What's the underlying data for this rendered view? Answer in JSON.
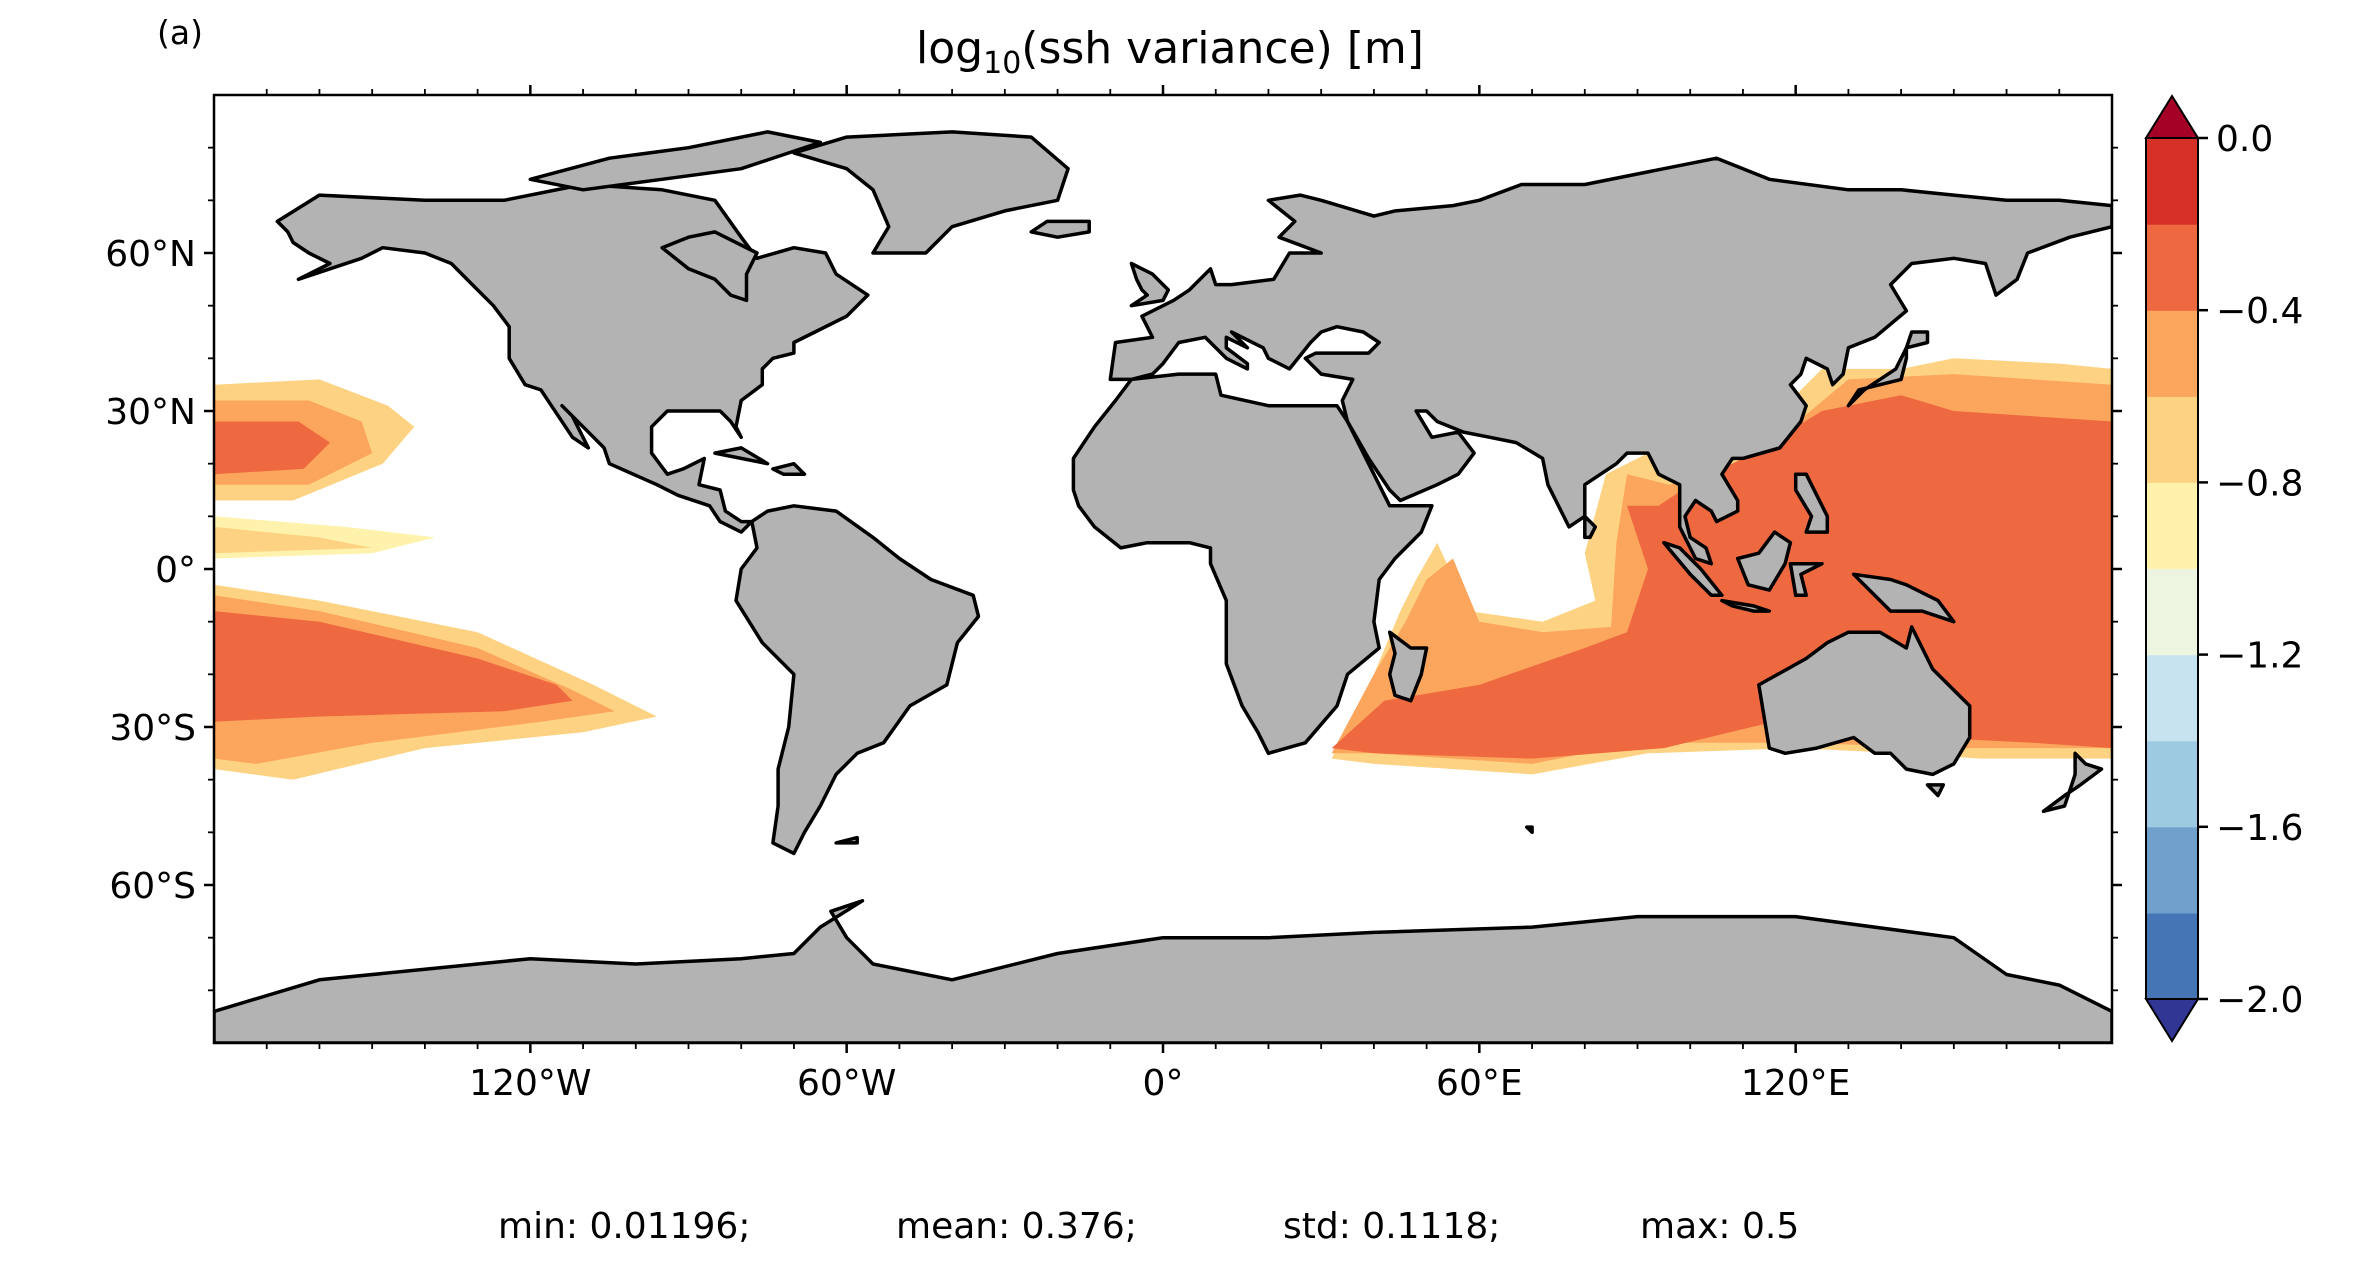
{
  "chart_data": {
    "type": "heatmap",
    "panel_label": "(a)",
    "title_main": "log",
    "title_sub": "10",
    "title_rest": "(ssh variance) [m]",
    "projection": "PlateCarree",
    "xlim": [
      -180,
      180
    ],
    "ylim": [
      -90,
      90
    ],
    "x_ticks": [
      -120,
      -60,
      0,
      60,
      120
    ],
    "x_tick_labels": [
      "120°W",
      "60°W",
      "0°",
      "60°E",
      "120°E"
    ],
    "y_ticks": [
      60,
      30,
      0,
      -30,
      -60
    ],
    "y_tick_labels": [
      "60°N",
      "30°N",
      "0°",
      "30°S",
      "60°S"
    ],
    "colorbar": {
      "levels": [
        -2.0,
        -1.8,
        -1.6,
        -1.4,
        -1.2,
        -1.0,
        -0.8,
        -0.6,
        -0.4,
        -0.2,
        0.0
      ],
      "colors": [
        "#4575b4",
        "#6fa0cc",
        "#9ecae1",
        "#c7e3ef",
        "#edf5e0",
        "#fff2ac",
        "#fdd383",
        "#fca55c",
        "#ee6840",
        "#d73027"
      ],
      "under_color": "#313695",
      "over_color": "#a50026",
      "tick_values": [
        0.0,
        -0.4,
        -0.8,
        -1.2,
        -1.6,
        -2.0
      ],
      "tick_labels": [
        "0.0",
        "−0.4",
        "−0.8",
        "−1.2",
        "−1.6",
        "−2.0"
      ],
      "extend": "both"
    },
    "land_color": "#b3b3b3",
    "field_regions": [
      {
        "region": "North Pacific subtropical band",
        "bands": [
          {
            "level": -0.8,
            "poly": [
              [
                -180,
                35
              ],
              [
                -160,
                36
              ],
              [
                -147,
                31
              ],
              [
                -142,
                27
              ],
              [
                -148,
                20
              ],
              [
                -165,
                13
              ],
              [
                -180,
                13
              ]
            ]
          },
          {
            "level": -0.6,
            "poly": [
              [
                -180,
                32
              ],
              [
                -162,
                32
              ],
              [
                -152,
                28
              ],
              [
                -150,
                22
              ],
              [
                -162,
                16
              ],
              [
                -180,
                16
              ]
            ]
          },
          {
            "level": -0.4,
            "poly": [
              [
                -180,
                28
              ],
              [
                -164,
                28
              ],
              [
                -158,
                24
              ],
              [
                -163,
                19
              ],
              [
                -180,
                18
              ]
            ]
          }
        ]
      },
      {
        "region": "Equatorial Pacific tongue",
        "bands": [
          {
            "level": -1.0,
            "poly": [
              [
                -180,
                10
              ],
              [
                -155,
                8
              ],
              [
                -138,
                6
              ],
              [
                -150,
                3
              ],
              [
                -180,
                2
              ]
            ]
          },
          {
            "level": -0.8,
            "poly": [
              [
                -180,
                8
              ],
              [
                -160,
                6
              ],
              [
                -150,
                4
              ],
              [
                -180,
                3
              ]
            ]
          }
        ]
      },
      {
        "region": "South Pacific subtropical band",
        "bands": [
          {
            "level": -0.8,
            "poly": [
              [
                -180,
                -3
              ],
              [
                -160,
                -6
              ],
              [
                -130,
                -12
              ],
              [
                -108,
                -22
              ],
              [
                -96,
                -28
              ],
              [
                -110,
                -31
              ],
              [
                -140,
                -34
              ],
              [
                -165,
                -40
              ],
              [
                -180,
                -38
              ]
            ]
          },
          {
            "level": -0.6,
            "poly": [
              [
                -180,
                -5
              ],
              [
                -160,
                -8
              ],
              [
                -130,
                -15
              ],
              [
                -112,
                -23
              ],
              [
                -104,
                -27
              ],
              [
                -118,
                -29
              ],
              [
                -150,
                -33
              ],
              [
                -172,
                -37
              ],
              [
                -180,
                -36
              ]
            ]
          },
          {
            "level": -0.4,
            "poly": [
              [
                -180,
                -8
              ],
              [
                -160,
                -10
              ],
              [
                -130,
                -17
              ],
              [
                -115,
                -22
              ],
              [
                -112,
                -25
              ],
              [
                -125,
                -27
              ],
              [
                -160,
                -28
              ],
              [
                -180,
                -29
              ]
            ]
          }
        ]
      },
      {
        "region": "Indian Ocean and western Pacific",
        "bands": [
          {
            "level": -0.8,
            "poly": [
              [
                32,
                -36
              ],
              [
                40,
                -20
              ],
              [
                45,
                -8
              ],
              [
                48,
                -2
              ],
              [
                52,
                5
              ],
              [
                58,
                -8
              ],
              [
                72,
                -10
              ],
              [
                82,
                -6
              ],
              [
                80,
                3
              ],
              [
                84,
                18
              ],
              [
                92,
                22
              ],
              [
                96,
                20
              ],
              [
                105,
                22
              ],
              [
                115,
                28
              ],
              [
                125,
                38
              ],
              [
                140,
                38
              ],
              [
                150,
                40
              ],
              [
                170,
                39
              ],
              [
                180,
                38
              ],
              [
                180,
                -36
              ],
              [
                155,
                -36
              ],
              [
                140,
                -35
              ],
              [
                120,
                -34
              ],
              [
                92,
                -35
              ],
              [
                70,
                -39
              ],
              [
                40,
                -37
              ]
            ]
          },
          {
            "level": -0.6,
            "poly": [
              [
                32,
                -35
              ],
              [
                40,
                -20
              ],
              [
                46,
                -10
              ],
              [
                50,
                -2
              ],
              [
                55,
                2
              ],
              [
                60,
                -10
              ],
              [
                72,
                -12
              ],
              [
                85,
                -11
              ],
              [
                86,
                5
              ],
              [
                88,
                18
              ],
              [
                96,
                16
              ],
              [
                106,
                18
              ],
              [
                118,
                26
              ],
              [
                130,
                36
              ],
              [
                150,
                37
              ],
              [
                180,
                35
              ],
              [
                180,
                -34
              ],
              [
                150,
                -34
              ],
              [
                120,
                -33
              ],
              [
                90,
                -33
              ],
              [
                70,
                -37
              ],
              [
                40,
                -35
              ]
            ]
          },
          {
            "level": -0.4,
            "poly": [
              [
                32,
                -34
              ],
              [
                42,
                -25
              ],
              [
                60,
                -22
              ],
              [
                80,
                -15
              ],
              [
                88,
                -12
              ],
              [
                92,
                0
              ],
              [
                88,
                12
              ],
              [
                94,
                12
              ],
              [
                100,
                16
              ],
              [
                112,
                22
              ],
              [
                125,
                30
              ],
              [
                140,
                33
              ],
              [
                150,
                30
              ],
              [
                180,
                28
              ],
              [
                180,
                -34
              ],
              [
                165,
                -33
              ],
              [
                145,
                -32
              ],
              [
                120,
                -28
              ],
              [
                95,
                -34
              ],
              [
                70,
                -36
              ],
              [
                40,
                -35
              ]
            ]
          }
        ]
      }
    ],
    "stats": [
      {
        "label": "min: 0.01196;",
        "value": 0.01196
      },
      {
        "label": "mean: 0.376;",
        "value": 0.376
      },
      {
        "label": "std: 0.1118;",
        "value": 0.1118
      },
      {
        "label": "max: 0.5",
        "value": 0.5
      }
    ]
  }
}
